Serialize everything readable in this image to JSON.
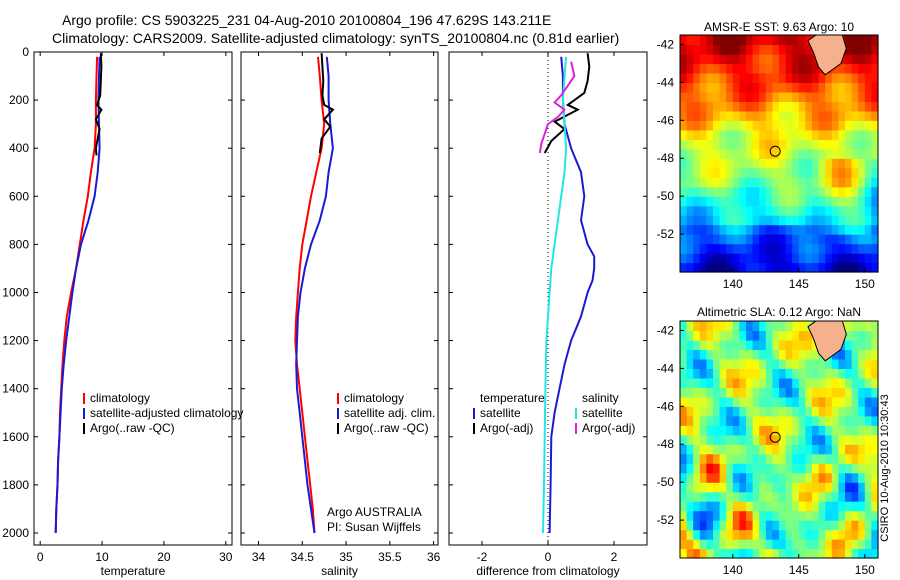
{
  "header": {
    "line1": "Argo profile: CS 5903225_231 04-Aug-2010 20100804_196 47.629S 143.211E",
    "line2": "Climatology: CARS2009. Satellite-adjusted climatology: synTS_20100804.nc (0.81d earlier)"
  },
  "colors": {
    "red": "#ff0000",
    "blue": "#1a1ad6",
    "black": "#000000",
    "cyan": "#22e6e6",
    "magenta": "#e020e0"
  },
  "chart_data": [
    {
      "type": "line",
      "id": "temperature",
      "xlabel": "temperature",
      "ylabel": "",
      "xlim": [
        -1,
        31
      ],
      "ylim": [
        2050,
        0
      ],
      "xticks": [
        "0",
        "10",
        "20",
        "30"
      ],
      "yticks": [
        "0",
        "200",
        "400",
        "600",
        "800",
        "1000",
        "1200",
        "1400",
        "1600",
        "1800",
        "2000"
      ],
      "legend": [
        "climatology",
        "satellite-adjusted climatology",
        "Argo(..raw -QC)"
      ],
      "series": [
        {
          "name": "climatology",
          "color": "red",
          "points": [
            [
              9.2,
              20
            ],
            [
              9.1,
              100
            ],
            [
              9.0,
              200
            ],
            [
              9.0,
              300
            ],
            [
              8.8,
              400
            ],
            [
              8.2,
              500
            ],
            [
              7.7,
              600
            ],
            [
              7.0,
              700
            ],
            [
              6.4,
              800
            ],
            [
              5.8,
              900
            ],
            [
              5.0,
              1000
            ],
            [
              4.3,
              1100
            ],
            [
              3.9,
              1200
            ],
            [
              3.6,
              1300
            ],
            [
              3.4,
              1400
            ],
            [
              3.2,
              1500
            ],
            [
              3.1,
              1600
            ],
            [
              2.9,
              1700
            ],
            [
              2.8,
              1800
            ],
            [
              2.6,
              1900
            ],
            [
              2.5,
              2000
            ]
          ]
        },
        {
          "name": "satellite-adjusted climatology",
          "color": "blue",
          "points": [
            [
              9.6,
              20
            ],
            [
              9.5,
              100
            ],
            [
              9.4,
              200
            ],
            [
              9.5,
              300
            ],
            [
              9.6,
              400
            ],
            [
              9.3,
              500
            ],
            [
              8.8,
              600
            ],
            [
              7.8,
              700
            ],
            [
              6.6,
              800
            ],
            [
              5.8,
              900
            ],
            [
              5.2,
              1000
            ],
            [
              4.7,
              1100
            ],
            [
              4.2,
              1200
            ],
            [
              3.8,
              1300
            ],
            [
              3.5,
              1400
            ],
            [
              3.3,
              1500
            ],
            [
              3.1,
              1600
            ],
            [
              2.9,
              1700
            ],
            [
              2.8,
              1800
            ],
            [
              2.6,
              1900
            ],
            [
              2.5,
              2000
            ]
          ]
        },
        {
          "name": "Argo(..raw -QC)",
          "color": "black",
          "points": [
            [
              9.8,
              5
            ],
            [
              9.9,
              60
            ],
            [
              9.8,
              120
            ],
            [
              9.7,
              180
            ],
            [
              9.2,
              220
            ],
            [
              9.9,
              240
            ],
            [
              9.0,
              280
            ],
            [
              9.6,
              320
            ],
            [
              9.3,
              360
            ],
            [
              9.0,
              400
            ],
            [
              9.1,
              430
            ]
          ]
        }
      ]
    },
    {
      "type": "line",
      "id": "salinity",
      "xlabel": "salinity",
      "ylabel": "",
      "xlim": [
        33.8,
        36.05
      ],
      "ylim": [
        2050,
        0
      ],
      "xticks": [
        "34",
        "34.5",
        "35",
        "35.5",
        "36"
      ],
      "yticks": [
        "0",
        "200",
        "400",
        "600",
        "800",
        "1000",
        "1200",
        "1400",
        "1600",
        "1800",
        "2000"
      ],
      "legend": [
        "climatology",
        "satellite adj. clim.",
        "Argo(..raw -QC)"
      ],
      "annotation": [
        "Argo AUSTRALIA",
        "PI: Susan Wijffels"
      ],
      "series": [
        {
          "name": "climatology",
          "color": "red",
          "points": [
            [
              34.68,
              20
            ],
            [
              34.7,
              100
            ],
            [
              34.72,
              200
            ],
            [
              34.75,
              300
            ],
            [
              34.72,
              400
            ],
            [
              34.66,
              500
            ],
            [
              34.6,
              600
            ],
            [
              34.55,
              700
            ],
            [
              34.5,
              800
            ],
            [
              34.47,
              900
            ],
            [
              34.45,
              1000
            ],
            [
              34.43,
              1100
            ],
            [
              34.42,
              1200
            ],
            [
              34.44,
              1300
            ],
            [
              34.47,
              1400
            ],
            [
              34.5,
              1500
            ],
            [
              34.53,
              1600
            ],
            [
              34.56,
              1700
            ],
            [
              34.59,
              1800
            ],
            [
              34.62,
              1900
            ],
            [
              34.64,
              2000
            ]
          ]
        },
        {
          "name": "satellite adj. clim.",
          "color": "blue",
          "points": [
            [
              34.78,
              20
            ],
            [
              34.8,
              100
            ],
            [
              34.8,
              200
            ],
            [
              34.82,
              300
            ],
            [
              34.85,
              400
            ],
            [
              34.8,
              500
            ],
            [
              34.77,
              600
            ],
            [
              34.7,
              700
            ],
            [
              34.6,
              800
            ],
            [
              34.53,
              900
            ],
            [
              34.48,
              1000
            ],
            [
              34.45,
              1100
            ],
            [
              34.44,
              1200
            ],
            [
              34.43,
              1300
            ],
            [
              34.44,
              1400
            ],
            [
              34.47,
              1500
            ],
            [
              34.5,
              1600
            ],
            [
              34.53,
              1700
            ],
            [
              34.56,
              1800
            ],
            [
              34.6,
              1900
            ],
            [
              34.64,
              2000
            ]
          ]
        },
        {
          "name": "Argo(..raw -QC)",
          "color": "black",
          "points": [
            [
              34.72,
              5
            ],
            [
              34.73,
              60
            ],
            [
              34.74,
              120
            ],
            [
              34.73,
              180
            ],
            [
              34.75,
              220
            ],
            [
              34.85,
              240
            ],
            [
              34.75,
              280
            ],
            [
              34.82,
              310
            ],
            [
              34.72,
              360
            ],
            [
              34.7,
              420
            ]
          ]
        }
      ]
    },
    {
      "type": "line",
      "id": "difference",
      "xlabel": "difference from climatology",
      "ylabel": "",
      "xlim": [
        -3,
        3
      ],
      "ylim": [
        2050,
        0
      ],
      "xticks": [
        "-2",
        "0",
        "2"
      ],
      "yticks": [
        "0",
        "200",
        "400",
        "600",
        "800",
        "1000",
        "1200",
        "1400",
        "1600",
        "1800",
        "2000"
      ],
      "legend": {
        "temperature": [
          "satellite",
          "Argo(-adj)"
        ],
        "salinity": [
          "satellite",
          "Argo(-adj)"
        ]
      },
      "legend_headers": [
        "temperature",
        "salinity"
      ],
      "series": [
        {
          "name": "temperature satellite",
          "color": "blue",
          "points": [
            [
              0.4,
              20
            ],
            [
              0.45,
              100
            ],
            [
              0.45,
              200
            ],
            [
              0.5,
              300
            ],
            [
              0.7,
              400
            ],
            [
              1.0,
              500
            ],
            [
              1.1,
              600
            ],
            [
              1.0,
              700
            ],
            [
              1.2,
              800
            ],
            [
              1.4,
              850
            ],
            [
              1.4,
              900
            ],
            [
              1.35,
              950
            ],
            [
              1.2,
              1000
            ],
            [
              1.0,
              1100
            ],
            [
              0.7,
              1200
            ],
            [
              0.5,
              1300
            ],
            [
              0.35,
              1400
            ],
            [
              0.2,
              1500
            ],
            [
              0.1,
              1600
            ],
            [
              0.08,
              1800
            ],
            [
              0.05,
              2000
            ]
          ]
        },
        {
          "name": "temperature Argo(-adj)",
          "color": "black",
          "points": [
            [
              1.2,
              5
            ],
            [
              1.25,
              60
            ],
            [
              1.2,
              120
            ],
            [
              1.1,
              170
            ],
            [
              0.6,
              220
            ],
            [
              0.9,
              240
            ],
            [
              0.2,
              290
            ],
            [
              0.5,
              320
            ],
            [
              0.1,
              370
            ],
            [
              -0.1,
              420
            ]
          ]
        },
        {
          "name": "salinity satellite",
          "color": "cyan",
          "points": [
            [
              0.55,
              20
            ],
            [
              0.5,
              100
            ],
            [
              0.45,
              200
            ],
            [
              0.5,
              300
            ],
            [
              0.55,
              400
            ],
            [
              0.5,
              500
            ],
            [
              0.4,
              600
            ],
            [
              0.3,
              700
            ],
            [
              0.2,
              800
            ],
            [
              0.1,
              900
            ],
            [
              0.05,
              1000
            ],
            [
              0.0,
              1100
            ],
            [
              -0.05,
              1200
            ],
            [
              -0.08,
              1400
            ],
            [
              -0.1,
              1600
            ],
            [
              -0.12,
              1800
            ],
            [
              -0.15,
              2000
            ]
          ]
        },
        {
          "name": "salinity Argo(-adj)",
          "color": "magenta",
          "points": [
            [
              0.7,
              40
            ],
            [
              0.8,
              100
            ],
            [
              0.6,
              140
            ],
            [
              0.4,
              180
            ],
            [
              0.2,
              210
            ],
            [
              0.5,
              240
            ],
            [
              0.3,
              270
            ],
            [
              0.0,
              300
            ],
            [
              -0.1,
              340
            ],
            [
              -0.2,
              380
            ],
            [
              -0.25,
              420
            ]
          ]
        }
      ]
    },
    {
      "type": "heatmap",
      "id": "sst-map",
      "title": "AMSR-E SST: 9.63 Argo: 10",
      "xlim": [
        136,
        151
      ],
      "ylim": [
        -54,
        -41.5
      ],
      "xticks": [
        "140",
        "145",
        "150"
      ],
      "yticks": [
        "-42",
        "-44",
        "-46",
        "-48",
        "-50",
        "-52"
      ],
      "marker": {
        "lon": 143.211,
        "lat": -47.629
      }
    },
    {
      "type": "heatmap",
      "id": "sla-map",
      "title": "Altimetric SLA: 0.12 Argo: NaN",
      "xlim": [
        136,
        151
      ],
      "ylim": [
        -54,
        -41.5
      ],
      "xticks": [
        "140",
        "145",
        "150"
      ],
      "yticks": [
        "-42",
        "-44",
        "-46",
        "-48",
        "-50",
        "-52"
      ],
      "marker": {
        "lon": 143.211,
        "lat": -47.629
      }
    }
  ],
  "footer": {
    "stamp": "CSIRO 10-Aug-2010 10:30:43"
  }
}
